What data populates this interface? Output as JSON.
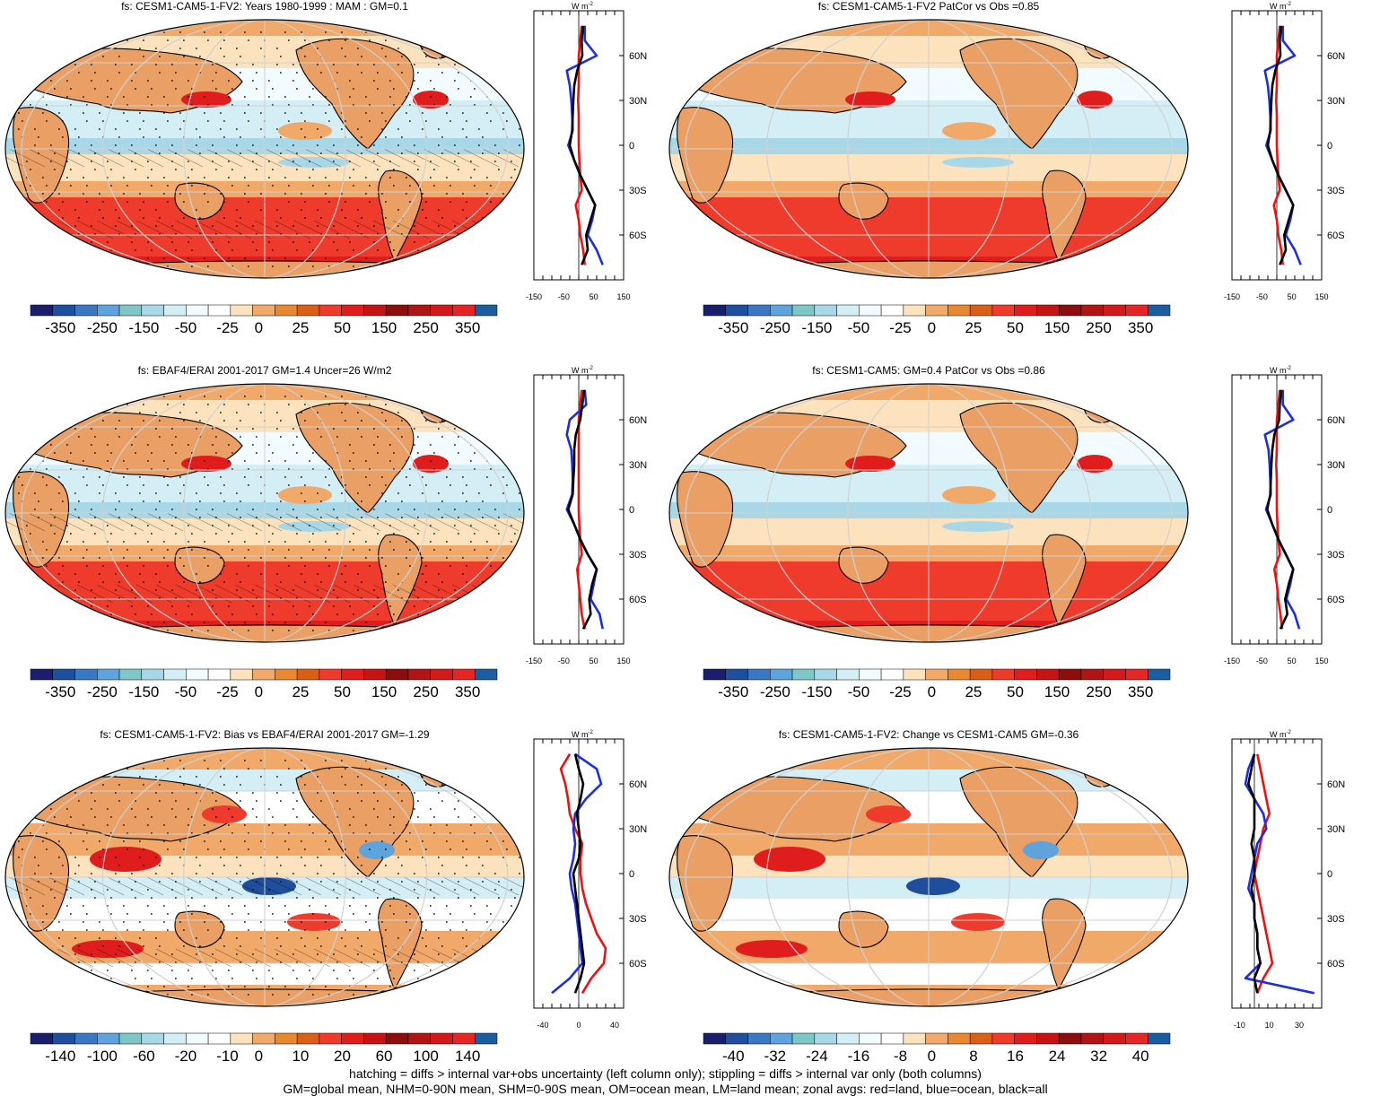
{
  "colors": {
    "seq": [
      "#1a1f6b",
      "#1f4e9c",
      "#3b78c4",
      "#5fa3dd",
      "#7fc6c6",
      "#a8d8e8",
      "#d4eef6",
      "#f2fbff",
      "#ffffff",
      "#fde3bd",
      "#f1a96a",
      "#e88932",
      "#d95f16",
      "#ee3b2c",
      "#e01d1d",
      "#c61414",
      "#8b0d0d",
      "#b01515",
      "#d21a1a",
      "#e42626",
      "#1a5ea0"
    ],
    "land": "#eaa065",
    "ocean_warm": "#f6c490",
    "red_line": "#ee1111",
    "blue_line": "#1b2ee0",
    "black_line": "#000000"
  },
  "footer": {
    "line1": "hatching = diffs > internal var+obs uncertainty (left column only); stippling = diffs > internal var only (both columns)",
    "line2": "GM=global mean, NHM=0-90N mean, SHM=0-90S mean, OM=ocean mean, LM=land mean; zonal avgs: red=land, blue=ocean, black=all"
  },
  "chart_data": [
    {
      "type": "heatmap",
      "title": "fs: CESM1-CAM5-1-FV2: Years 1980-1999 : MAM : GM=0.1",
      "colorbar_ticks": [
        "-350",
        "-250",
        "-150",
        "-50",
        "-25",
        "0",
        "25",
        "50",
        "150",
        "250",
        "350"
      ],
      "zonal": {
        "unit": "W m",
        "unit_sup": "-2",
        "xticks": [
          "-150",
          "-50",
          "50",
          "150"
        ],
        "xlim": [
          -150,
          150
        ],
        "ylabels": [
          "60N",
          "30N",
          "0",
          "30S",
          "60S"
        ],
        "lat": [
          80,
          70,
          60,
          50,
          40,
          30,
          20,
          10,
          0,
          -10,
          -20,
          -30,
          -40,
          -50,
          -60,
          -70,
          -80
        ],
        "all": [
          15,
          10,
          12,
          -5,
          -15,
          -18,
          -20,
          -22,
          -30,
          -15,
          5,
          30,
          55,
          40,
          25,
          30,
          10
        ],
        "ocean": [
          20,
          20,
          60,
          -40,
          -30,
          -25,
          -22,
          -20,
          -35,
          -15,
          5,
          30,
          55,
          45,
          30,
          60,
          80
        ],
        "land": [
          10,
          5,
          0,
          0,
          0,
          -2,
          0,
          0,
          0,
          2,
          5,
          10,
          -10,
          0,
          5,
          15,
          20
        ]
      }
    },
    {
      "type": "heatmap",
      "title": "fs: CESM1-CAM5-1-FV2 PatCor vs Obs =0.85",
      "colorbar_ticks": [
        "-350",
        "-250",
        "-150",
        "-50",
        "-25",
        "0",
        "25",
        "50",
        "150",
        "250",
        "350"
      ],
      "zonal": {
        "unit": "W m",
        "unit_sup": "-2",
        "xticks": [
          "-150",
          "-50",
          "50",
          "150"
        ],
        "xlim": [
          -150,
          150
        ],
        "ylabels": [
          "60N",
          "30N",
          "0",
          "30S",
          "60S"
        ],
        "lat": [
          80,
          70,
          60,
          50,
          40,
          30,
          20,
          10,
          0,
          -10,
          -20,
          -30,
          -40,
          -50,
          -60,
          -70,
          -80
        ],
        "all": [
          15,
          10,
          12,
          -5,
          -15,
          -18,
          -20,
          -22,
          -30,
          -15,
          5,
          30,
          55,
          40,
          25,
          30,
          10
        ],
        "ocean": [
          20,
          20,
          60,
          -40,
          -30,
          -25,
          -22,
          -20,
          -35,
          -15,
          5,
          30,
          55,
          45,
          30,
          60,
          80
        ],
        "land": [
          10,
          5,
          0,
          0,
          0,
          -2,
          0,
          0,
          0,
          2,
          5,
          10,
          -10,
          0,
          5,
          15,
          20
        ]
      }
    },
    {
      "type": "heatmap",
      "title": "fs: EBAF4/ERAI 2001-2017 GM=1.4 Uncer=26 W/m2",
      "colorbar_ticks": [
        "-350",
        "-250",
        "-150",
        "-50",
        "-25",
        "0",
        "25",
        "50",
        "150",
        "250",
        "350"
      ],
      "zonal": {
        "unit": "W m",
        "unit_sup": "-2",
        "xticks": [
          "-150",
          "-50",
          "50",
          "150"
        ],
        "xlim": [
          -150,
          150
        ],
        "ylabels": [
          "60N",
          "30N",
          "0",
          "30S",
          "60S"
        ],
        "lat": [
          80,
          70,
          60,
          50,
          40,
          30,
          20,
          10,
          0,
          -10,
          -20,
          -30,
          -40,
          -50,
          -60,
          -70,
          -80
        ],
        "all": [
          18,
          12,
          5,
          -10,
          -15,
          -15,
          -18,
          -20,
          -35,
          -15,
          5,
          30,
          60,
          45,
          35,
          40,
          15
        ],
        "ocean": [
          20,
          25,
          -30,
          -40,
          -25,
          -22,
          -20,
          -22,
          -40,
          -15,
          5,
          30,
          60,
          50,
          40,
          70,
          80
        ],
        "land": [
          10,
          5,
          0,
          0,
          0,
          0,
          0,
          0,
          0,
          2,
          5,
          10,
          -5,
          0,
          5,
          10,
          20
        ]
      }
    },
    {
      "type": "heatmap",
      "title": "fs: CESM1-CAM5: GM=0.4 PatCor vs Obs =0.86",
      "colorbar_ticks": [
        "-350",
        "-250",
        "-150",
        "-50",
        "-25",
        "0",
        "25",
        "50",
        "150",
        "250",
        "350"
      ],
      "zonal": {
        "unit": "W m",
        "unit_sup": "-2",
        "xticks": [
          "-150",
          "-50",
          "50",
          "150"
        ],
        "xlim": [
          -150,
          150
        ],
        "ylabels": [
          "60N",
          "30N",
          "0",
          "30S",
          "60S"
        ],
        "lat": [
          80,
          70,
          60,
          50,
          40,
          30,
          20,
          10,
          0,
          -10,
          -20,
          -30,
          -40,
          -50,
          -60,
          -70,
          -80
        ],
        "all": [
          15,
          10,
          8,
          -8,
          -15,
          -18,
          -20,
          -22,
          -32,
          -15,
          5,
          30,
          55,
          40,
          28,
          35,
          12
        ],
        "ocean": [
          20,
          20,
          55,
          -40,
          -28,
          -24,
          -22,
          -20,
          -36,
          -15,
          5,
          30,
          55,
          45,
          32,
          60,
          75
        ],
        "land": [
          10,
          5,
          0,
          0,
          0,
          -2,
          0,
          0,
          0,
          2,
          5,
          10,
          -8,
          0,
          5,
          12,
          18
        ]
      }
    },
    {
      "type": "heatmap",
      "title": "fs: CESM1-CAM5-1-FV2: Bias vs EBAF4/ERAI 2001-2017 GM=-1.29",
      "colorbar_ticks": [
        "-140",
        "-100",
        "-60",
        "-20",
        "-10",
        "0",
        "10",
        "20",
        "60",
        "100",
        "140"
      ],
      "zonal": {
        "unit": "W m",
        "unit_sup": "-2",
        "xticks": [
          "-40",
          "0",
          "40"
        ],
        "xlim": [
          -50,
          50
        ],
        "ylabels": [
          "60N",
          "30N",
          "0",
          "30S",
          "60S"
        ],
        "lat": [
          80,
          70,
          60,
          50,
          40,
          30,
          20,
          10,
          0,
          -10,
          -20,
          -30,
          -40,
          -50,
          -60,
          -70,
          -80
        ],
        "all": [
          -4,
          0,
          5,
          2,
          -2,
          0,
          2,
          0,
          -6,
          -4,
          -2,
          0,
          2,
          4,
          6,
          2,
          -4
        ],
        "ocean": [
          -4,
          20,
          25,
          8,
          -4,
          -6,
          -4,
          -6,
          -10,
          -8,
          -4,
          -2,
          0,
          2,
          4,
          -10,
          -30
        ],
        "land": [
          -10,
          -20,
          -15,
          -12,
          -10,
          -4,
          4,
          2,
          2,
          4,
          8,
          14,
          20,
          30,
          28,
          14,
          4
        ]
      }
    },
    {
      "type": "heatmap",
      "title": "fs: CESM1-CAM5-1-FV2: Change vs CESM1-CAM5 GM=-0.36",
      "colorbar_ticks": [
        "-40",
        "-32",
        "-24",
        "-16",
        "-8",
        "0",
        "8",
        "16",
        "24",
        "32",
        "40"
      ],
      "zonal": {
        "unit": "W m",
        "unit_sup": "-2",
        "xticks": [
          "-10",
          "10",
          "30"
        ],
        "xlim": [
          -15,
          45
        ],
        "ylabels": [
          "60N",
          "30N",
          "0",
          "30S",
          "60S"
        ],
        "lat": [
          80,
          70,
          60,
          50,
          40,
          30,
          20,
          10,
          0,
          -10,
          -20,
          -30,
          -40,
          -50,
          -60,
          -70,
          -80
        ],
        "all": [
          0,
          -2,
          -4,
          0,
          0,
          0,
          -2,
          0,
          0,
          -2,
          0,
          0,
          2,
          2,
          4,
          0,
          2
        ],
        "ocean": [
          0,
          -4,
          -6,
          0,
          6,
          8,
          2,
          0,
          -2,
          -4,
          0,
          0,
          2,
          2,
          4,
          -6,
          40
        ],
        "land": [
          2,
          4,
          6,
          8,
          10,
          6,
          4,
          2,
          0,
          2,
          4,
          6,
          8,
          10,
          12,
          6,
          2
        ]
      }
    }
  ]
}
